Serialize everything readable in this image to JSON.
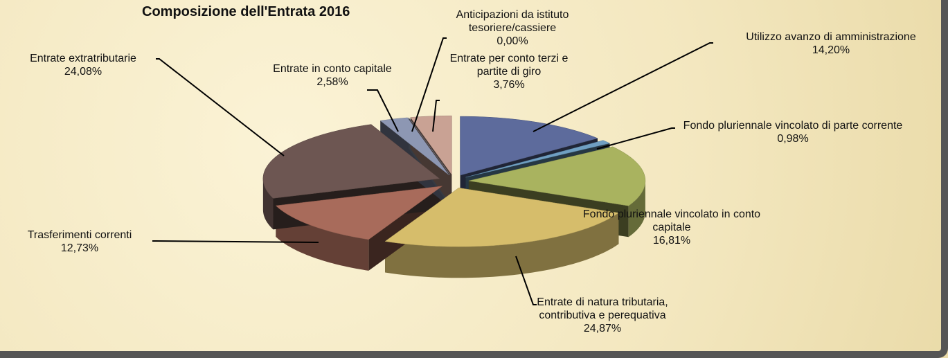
{
  "chart_data": {
    "type": "pie",
    "title": "Composizione dell'Entrata 2016",
    "categories": [
      "Utilizzo avanzo di amministrazione",
      "Fondo pluriennale vincolato di parte corrente",
      "Fondo pluriennale vincolato in conto capitale",
      "Entrate di natura tributaria, contributiva  e perequativa",
      "Trasferimenti correnti",
      "Entrate extratributarie",
      "Entrate in conto capitale",
      "Anticipazioni da istituto tesoriere/cassiere",
      "Entrate per conto terzi e partite di giro"
    ],
    "values": [
      14.2,
      0.98,
      16.81,
      24.87,
      12.73,
      24.08,
      2.58,
      0,
      3.76
    ],
    "value_labels": [
      "14,20%",
      "0,98%",
      "16,81%",
      "24,87%",
      "12,73%",
      "24,08%",
      "2,58%",
      "0,00%",
      "3,76%"
    ],
    "colors": [
      "#5d6b9c",
      "#6f9fc2",
      "#a9b35f",
      "#d6bd6b",
      "#a86b5b",
      "#6d5652",
      "#8d97b3",
      "#9aa6c0",
      "#c9a294"
    ]
  }
}
